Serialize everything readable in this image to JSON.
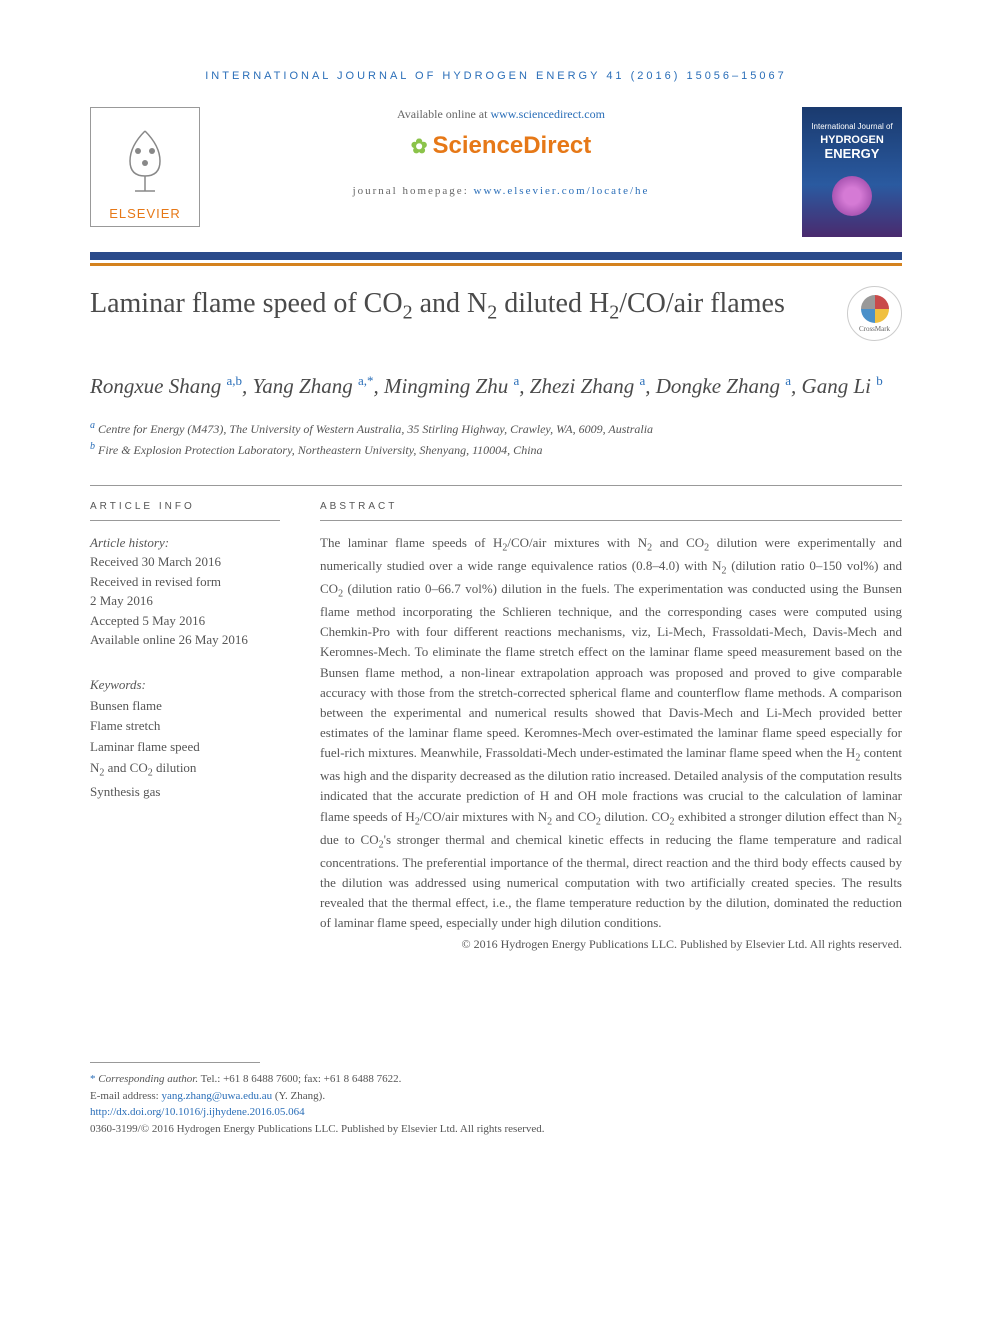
{
  "journal_header": "INTERNATIONAL JOURNAL OF HYDROGEN ENERGY 41 (2016) 15056–15067",
  "available_prefix": "Available online at ",
  "available_url": "www.sciencedirect.com",
  "sd_brand": "ScienceDirect",
  "homepage_prefix": "journal homepage: ",
  "homepage_url": "www.elsevier.com/locate/he",
  "elsevier_label": "ELSEVIER",
  "cover": {
    "line1": "International Journal of",
    "line2": "HYDROGEN",
    "line3": "ENERGY"
  },
  "crossmark_label": "CrossMark",
  "title_html": "Laminar flame speed of CO<sub>2</sub> and N<sub>2</sub> diluted H<sub>2</sub>/CO/air flames",
  "authors_html": "Rongxue Shang <sup>a,b</sup>, Yang Zhang <sup>a,*</sup>, Mingming Zhu <sup>a</sup>, Zhezi Zhang <sup>a</sup>, Dongke Zhang <sup>a</sup>, Gang Li <sup>b</sup>",
  "affiliations": [
    {
      "sup": "a",
      "text": " Centre for Energy (M473), The University of Western Australia, 35 Stirling Highway, Crawley, WA, 6009, Australia"
    },
    {
      "sup": "b",
      "text": " Fire & Explosion Protection Laboratory, Northeastern University, Shenyang, 110004, China"
    }
  ],
  "article_info_head": "ARTICLE INFO",
  "abstract_head": "ABSTRACT",
  "history_label": "Article history:",
  "history": [
    "Received 30 March 2016",
    "Received in revised form",
    "2 May 2016",
    "Accepted 5 May 2016",
    "Available online 26 May 2016"
  ],
  "keywords_label": "Keywords:",
  "keywords": [
    "Bunsen flame",
    "Flame stretch",
    "Laminar flame speed",
    "N<sub>2</sub> and CO<sub>2</sub> dilution",
    "Synthesis gas"
  ],
  "abstract_html": "The laminar flame speeds of H<sub>2</sub>/CO/air mixtures with N<sub>2</sub> and CO<sub>2</sub> dilution were experimentally and numerically studied over a wide range equivalence ratios (0.8–4.0) with N<sub>2</sub> (dilution ratio 0–150 vol%) and CO<sub>2</sub> (dilution ratio 0–66.7 vol%) dilution in the fuels. The experimentation was conducted using the Bunsen flame method incorporating the Schlieren technique, and the corresponding cases were computed using Chemkin-Pro with four different reactions mechanisms, viz, Li-Mech, Frassoldati-Mech, Davis-Mech and Keromnes-Mech. To eliminate the flame stretch effect on the laminar flame speed measurement based on the Bunsen flame method, a non-linear extrapolation approach was proposed and proved to give comparable accuracy with those from the stretch-corrected spherical flame and counterflow flame methods. A comparison between the experimental and numerical results showed that Davis-Mech and Li-Mech provided better estimates of the laminar flame speed. Keromnes-Mech over-estimated the laminar flame speed especially for fuel-rich mixtures. Meanwhile, Frassoldati-Mech under-estimated the laminar flame speed when the H<sub>2</sub> content was high and the disparity decreased as the dilution ratio increased. Detailed analysis of the computation results indicated that the accurate prediction of H and OH mole fractions was crucial to the calculation of laminar flame speeds of H<sub>2</sub>/CO/air mixtures with N<sub>2</sub> and CO<sub>2</sub> dilution. CO<sub>2</sub> exhibited a stronger dilution effect than N<sub>2</sub> due to CO<sub>2</sub>'s stronger thermal and chemical kinetic effects in reducing the flame temperature and radical concentrations. The preferential importance of the thermal, direct reaction and the third body effects caused by the dilution was addressed using numerical computation with two artificially created species. The results revealed that the thermal effect, i.e., the flame temperature reduction by the dilution, dominated the reduction of laminar flame speed, especially under high dilution conditions.",
  "copyright": "© 2016 Hydrogen Energy Publications LLC. Published by Elsevier Ltd. All rights reserved.",
  "footer": {
    "corresp_label": "Corresponding author.",
    "tel_fax": " Tel.: +61 8 6488 7600; fax: +61 8 6488 7622.",
    "email_label": "E-mail address: ",
    "email": "yang.zhang@uwa.edu.au",
    "email_suffix": " (Y. Zhang).",
    "doi": "http://dx.doi.org/10.1016/j.ijhydene.2016.05.064",
    "issn_line": "0360-3199/© 2016 Hydrogen Energy Publications LLC. Published by Elsevier Ltd. All rights reserved."
  },
  "colors": {
    "link": "#2a6eb8",
    "elsevier_orange": "#e67817",
    "bar_blue": "#2a4a8a",
    "bar_orange": "#d4821e",
    "text": "#555555"
  }
}
